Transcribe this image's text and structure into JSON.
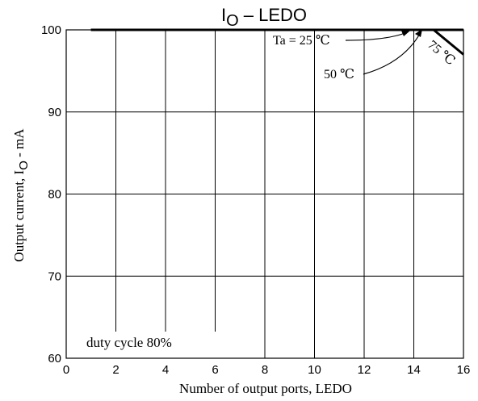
{
  "title": {
    "main": "I",
    "sub": "O",
    "rest": " – LEDO"
  },
  "chart_data": {
    "type": "line",
    "xlabel": "Number of output ports, LEDO",
    "ylabel": {
      "main": "Output current,  I",
      "sub": "O",
      "rest": " - mA"
    },
    "xlim": [
      0,
      16
    ],
    "ylim": [
      60,
      100
    ],
    "x_ticks": [
      0,
      2,
      4,
      6,
      8,
      10,
      12,
      14,
      16
    ],
    "y_ticks": [
      60,
      70,
      80,
      90,
      100
    ],
    "grid": true,
    "series": [
      {
        "name": "Ta = 25 ℃",
        "x": [
          1,
          16
        ],
        "y": [
          100,
          100
        ]
      },
      {
        "name": "50 ℃",
        "x": [
          1,
          16
        ],
        "y": [
          100,
          100
        ]
      },
      {
        "name": "75 ℃",
        "x": [
          1,
          14.8,
          16
        ],
        "y": [
          100,
          100,
          97
        ]
      }
    ],
    "annotations": [
      {
        "text": "Ta = 25 ℃"
      },
      {
        "text": "50 ℃"
      },
      {
        "text": "75 ℃"
      },
      {
        "text": "duty cycle 80%"
      }
    ]
  }
}
